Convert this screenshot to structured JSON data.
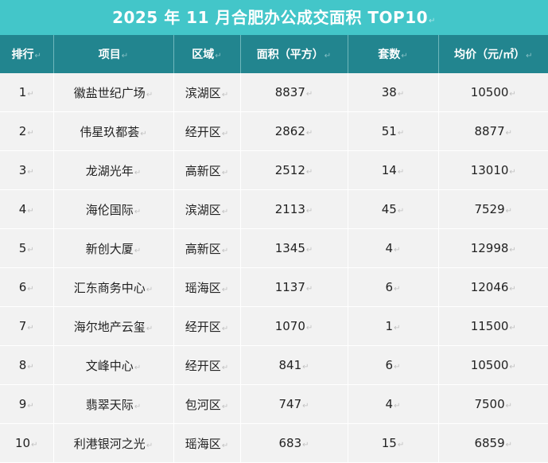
{
  "title": "2025 年 11 月合肥办公成交面积 TOP10",
  "mark": "↵",
  "headers": [
    "排行",
    "项目",
    "区域",
    "面积（平方）",
    "套数",
    "均价（元/㎡）"
  ],
  "rows": [
    [
      "1",
      "徽盐世纪广场",
      "滨湖区",
      "8837",
      "38",
      "10500"
    ],
    [
      "2",
      "伟星玖都荟",
      "经开区",
      "2862",
      "51",
      "8877"
    ],
    [
      "3",
      "龙湖光年",
      "高新区",
      "2512",
      "14",
      "13010"
    ],
    [
      "4",
      "海伦国际",
      "滨湖区",
      "2113",
      "45",
      "7529"
    ],
    [
      "5",
      "新创大厦",
      "高新区",
      "1345",
      "4",
      "12998"
    ],
    [
      "6",
      "汇东商务中心",
      "瑶海区",
      "1137",
      "6",
      "12046"
    ],
    [
      "7",
      "海尔地产云玺",
      "经开区",
      "1070",
      "1",
      "11500"
    ],
    [
      "8",
      "文峰中心",
      "经开区",
      "841",
      "6",
      "10500"
    ],
    [
      "9",
      "翡翠天际",
      "包河区",
      "747",
      "4",
      "7500"
    ],
    [
      "10",
      "利港银河之光",
      "瑶海区",
      "683",
      "15",
      "6859"
    ]
  ]
}
